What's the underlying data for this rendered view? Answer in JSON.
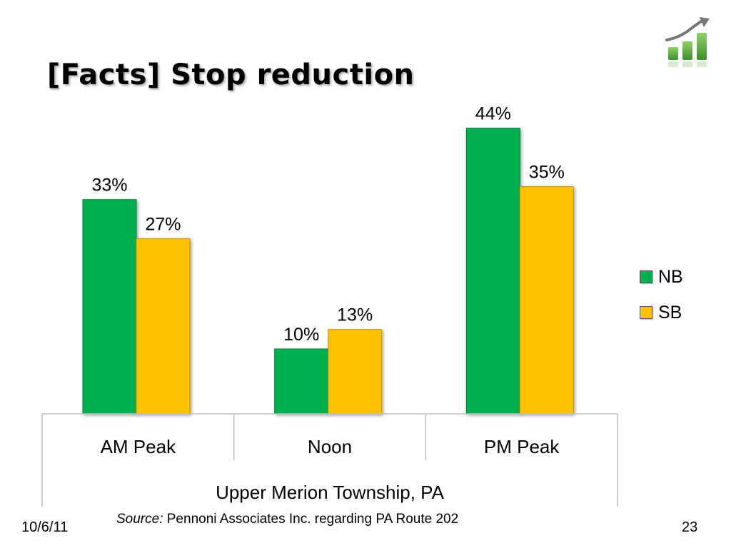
{
  "slide": {
    "title": "[Facts] Stop reduction",
    "date": "10/6/11",
    "page_number": "23",
    "source_label": "Source:",
    "source_text": " Pennoni Associates Inc. regarding PA Route 202"
  },
  "colors": {
    "nb": "#00b050",
    "sb": "#ffc000",
    "logo_green": "#5aaa3c",
    "logo_arrow": "#7a7a7a"
  },
  "icons": {
    "logo": "growth-chart-icon"
  },
  "chart_data": {
    "type": "bar",
    "categories": [
      "AM Peak",
      "Noon",
      "PM Peak"
    ],
    "group_label": "Upper Merion Township, PA",
    "series": [
      {
        "name": "NB",
        "values": [
          33,
          10,
          44
        ],
        "labels": [
          "33%",
          "10%",
          "44%"
        ]
      },
      {
        "name": "SB",
        "values": [
          27,
          13,
          35
        ],
        "labels": [
          "27%",
          "13%",
          "35%"
        ]
      }
    ],
    "ylim": [
      0,
      50
    ],
    "unit": "%",
    "legend_position": "right",
    "grid": false
  }
}
